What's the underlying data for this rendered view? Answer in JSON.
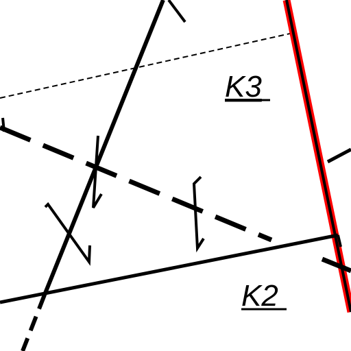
{
  "labels": {
    "k3": "K3",
    "k2": "K2"
  },
  "colors": {
    "line": "#000000",
    "highlight": "#ff0000",
    "background": "#ffffff"
  }
}
